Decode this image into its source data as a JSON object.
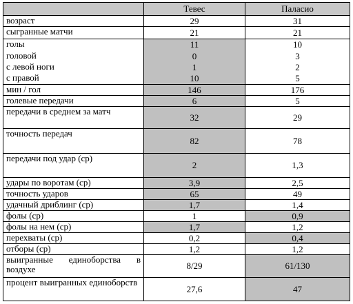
{
  "table": {
    "header": [
      "Тевес",
      "Паласио"
    ],
    "rows": [
      {
        "label": "возраст",
        "values": [
          "29",
          "31"
        ]
      },
      {
        "label": "сыгранные матчи",
        "values": [
          "21",
          "21"
        ]
      },
      {
        "label": "голы",
        "values": [
          "11",
          "10"
        ]
      },
      {
        "label": "головой",
        "values": [
          "0",
          "3"
        ]
      },
      {
        "label": "с левой ноги",
        "values": [
          "1",
          "2"
        ]
      },
      {
        "label": "с правой",
        "values": [
          "10",
          "5"
        ]
      },
      {
        "label": "мин / гол",
        "values": [
          "146",
          "176"
        ]
      },
      {
        "label": "голевые передачи",
        "values": [
          "6",
          "5"
        ]
      },
      {
        "label": "передачи в среднем за матч",
        "values": [
          "32",
          "29"
        ]
      },
      {
        "label": "точность передач",
        "values": [
          "82",
          "78"
        ]
      },
      {
        "label": "передачи под удар (ср)",
        "values": [
          "2",
          "1,3"
        ]
      },
      {
        "label": "удары по воротам (ср)",
        "values": [
          "3,9",
          "2,5"
        ]
      },
      {
        "label": "точность ударов",
        "values": [
          "65",
          "49"
        ]
      },
      {
        "label": "удачный дриблинг (ср)",
        "values": [
          "1,7",
          "1,4"
        ]
      },
      {
        "label": "фолы (ср)",
        "values": [
          "1",
          "0,9"
        ]
      },
      {
        "label": "фолы на нем (ср)",
        "values": [
          "1,7",
          "1,2"
        ]
      },
      {
        "label": "перехваты (ср)",
        "values": [
          "0,2",
          "0,4"
        ]
      },
      {
        "label": "отборы (ср)",
        "values": [
          "1,2",
          "1,2"
        ]
      },
      {
        "label": "выигранные единоборства в воздухе",
        "values": [
          "8/29",
          "61/130"
        ]
      },
      {
        "label": "процент выигранных единоборств",
        "values": [
          "27,6",
          "47"
        ]
      }
    ]
  }
}
